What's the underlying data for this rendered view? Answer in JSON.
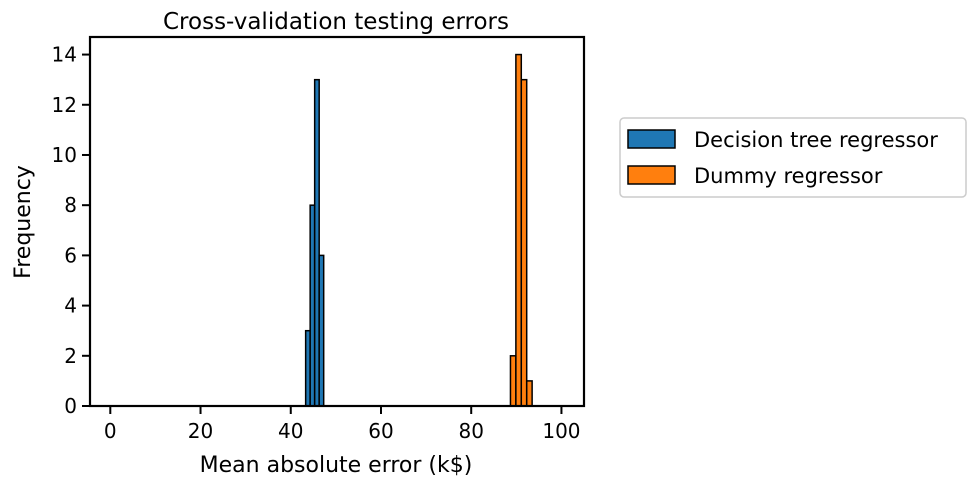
{
  "chart_data": {
    "type": "bar",
    "title": "Cross-validation testing errors",
    "xlabel": "Mean absolute error (k$)",
    "ylabel": "Frequency",
    "xlim": [
      -4.5,
      105
    ],
    "ylim": [
      0,
      14.7
    ],
    "x_ticks": [
      0,
      20,
      40,
      60,
      80,
      100
    ],
    "y_ticks": [
      0,
      2,
      4,
      6,
      8,
      10,
      12,
      14
    ],
    "grid": false,
    "legend_position": "outside-right",
    "series": [
      {
        "name": "Decision tree regressor",
        "color": "#1f77b4",
        "bins": [
          {
            "x0": 0,
            "x1": 1,
            "count": 0
          },
          {
            "x0": 43.3,
            "x1": 44.3,
            "count": 3
          },
          {
            "x0": 44.3,
            "x1": 45.3,
            "count": 8
          },
          {
            "x0": 45.3,
            "x1": 46.3,
            "count": 13
          },
          {
            "x0": 46.3,
            "x1": 47.3,
            "count": 6
          }
        ]
      },
      {
        "name": "Dummy regressor",
        "color": "#ff7f0e",
        "bins": [
          {
            "x0": 88.7,
            "x1": 89.9,
            "count": 2
          },
          {
            "x0": 89.9,
            "x1": 91.1,
            "count": 14
          },
          {
            "x0": 91.1,
            "x1": 92.3,
            "count": 13
          },
          {
            "x0": 92.3,
            "x1": 93.5,
            "count": 1
          },
          {
            "x0": 93.5,
            "x1": 100,
            "count": 0
          }
        ]
      }
    ]
  }
}
